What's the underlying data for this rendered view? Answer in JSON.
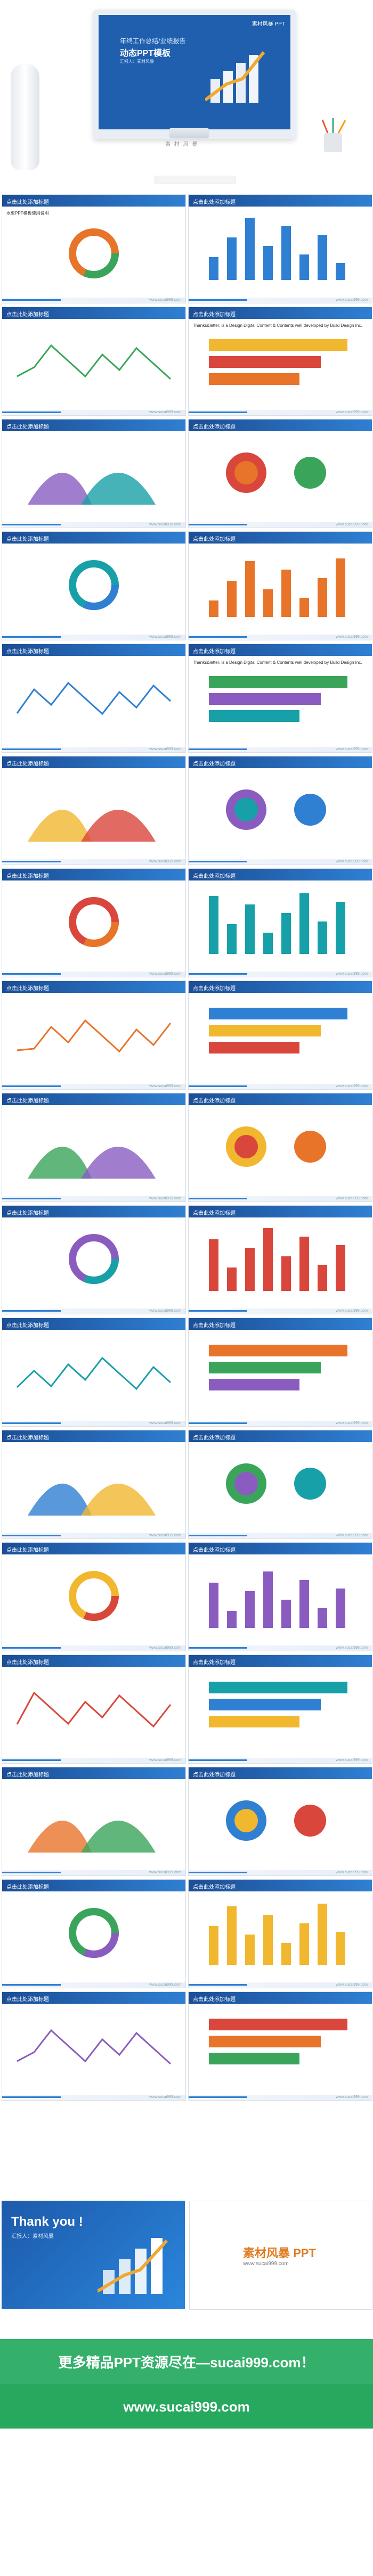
{
  "hero": {
    "logo": "素材风暴 PPT",
    "title_line1": "年终工作总结/业绩报告",
    "title_line2": "动态PPT模板",
    "subtitle": "汇报人：素材风暴",
    "caption": "素 材 风 暴"
  },
  "slide_header": "点击此处添加标题",
  "slide_footer": "www.sucai999.com",
  "slides": [
    {
      "note": "水型PPT模板使用说明"
    },
    {
      "note": ""
    },
    {
      "note": ""
    },
    {
      "note": "Thanks&letter, is a Design Digital Content & Contents well developed by Build Design Inc."
    },
    {
      "note": ""
    },
    {
      "note": ""
    },
    {
      "note": ""
    },
    {
      "note": ""
    },
    {
      "note": ""
    },
    {
      "note": "Thanks&letter, is a Design Digital Content & Contents well developed by Build Design Inc."
    },
    {
      "note": ""
    },
    {
      "note": ""
    },
    {
      "note": ""
    },
    {
      "note": ""
    },
    {
      "note": ""
    },
    {
      "note": ""
    },
    {
      "note": ""
    },
    {
      "note": ""
    },
    {
      "note": ""
    },
    {
      "note": ""
    },
    {
      "note": ""
    },
    {
      "note": ""
    },
    {
      "note": ""
    },
    {
      "note": ""
    },
    {
      "note": ""
    },
    {
      "note": ""
    },
    {
      "note": ""
    },
    {
      "note": ""
    },
    {
      "note": ""
    },
    {
      "note": ""
    },
    {
      "note": ""
    },
    {
      "note": ""
    },
    {
      "note": ""
    },
    {
      "note": ""
    },
    {
      "note": ""
    },
    {
      "note": ""
    },
    {
      "note": ""
    },
    {
      "note": ""
    }
  ],
  "thanks": {
    "title": "Thank you !",
    "subtitle": "汇报人：素材风暴"
  },
  "brand": {
    "logo": "素材风暴 PPT",
    "url": "www.sucai999.com"
  },
  "banner": {
    "line1": "更多精品PPT资源尽在—sucai999.com！",
    "line2": "www.sucai999.com"
  },
  "colors": {
    "header_blue": "#1b4e96",
    "accent_orange": "#e8742a",
    "green_band": "#35b06b"
  }
}
